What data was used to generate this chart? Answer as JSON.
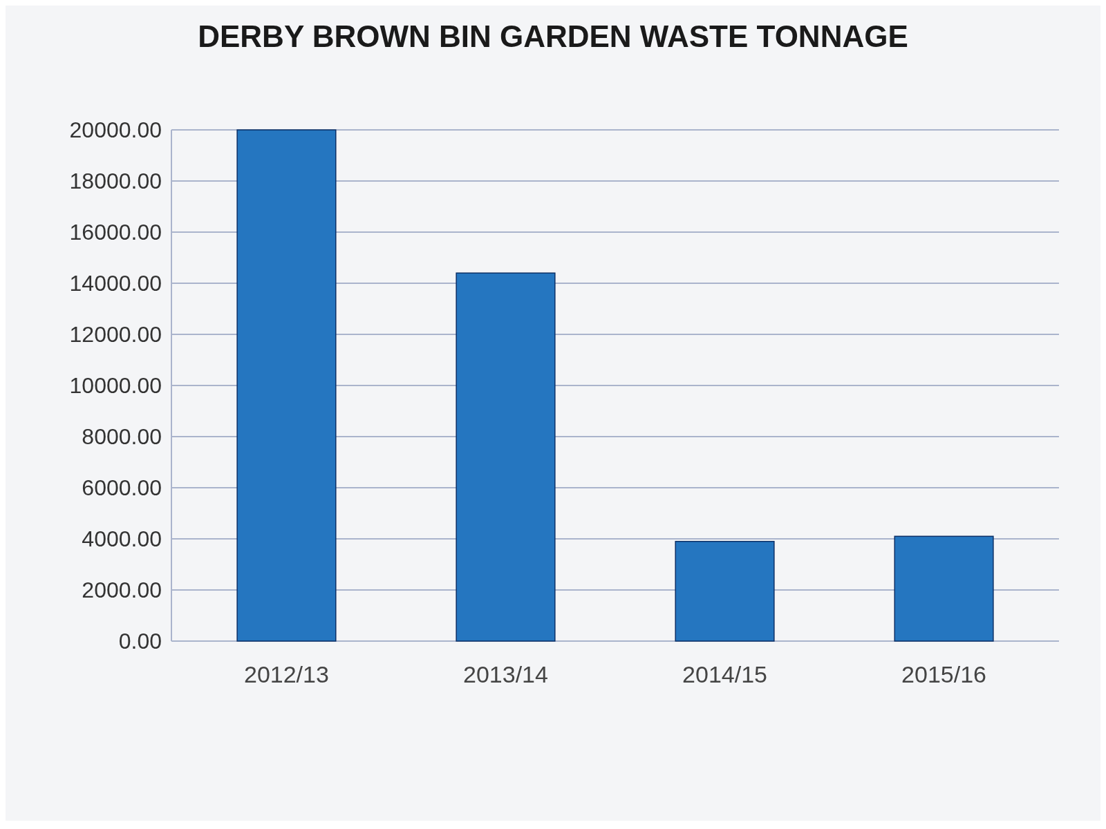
{
  "chart_data": {
    "type": "bar",
    "title": "DERBY BROWN BIN GARDEN WASTE TONNAGE",
    "categories": [
      "2012/13",
      "2013/14",
      "2014/15",
      "2015/16"
    ],
    "values": [
      20000,
      14400,
      3900,
      4100
    ],
    "color": "#2576c0",
    "ylim": [
      0,
      20000
    ],
    "yticks": [
      {
        "value": 0,
        "label": "0.00"
      },
      {
        "value": 2000,
        "label": "2000.00"
      },
      {
        "value": 4000,
        "label": "4000.00"
      },
      {
        "value": 6000,
        "label": "6000.00"
      },
      {
        "value": 8000,
        "label": "8000.00"
      },
      {
        "value": 10000,
        "label": "10000.00"
      },
      {
        "value": 12000,
        "label": "12000.00"
      },
      {
        "value": 14000,
        "label": "14000.00"
      },
      {
        "value": 16000,
        "label": "16000.00"
      },
      {
        "value": 18000,
        "label": "18000.00"
      },
      {
        "value": 20000,
        "label": "20000.00"
      }
    ],
    "grid": "y"
  }
}
